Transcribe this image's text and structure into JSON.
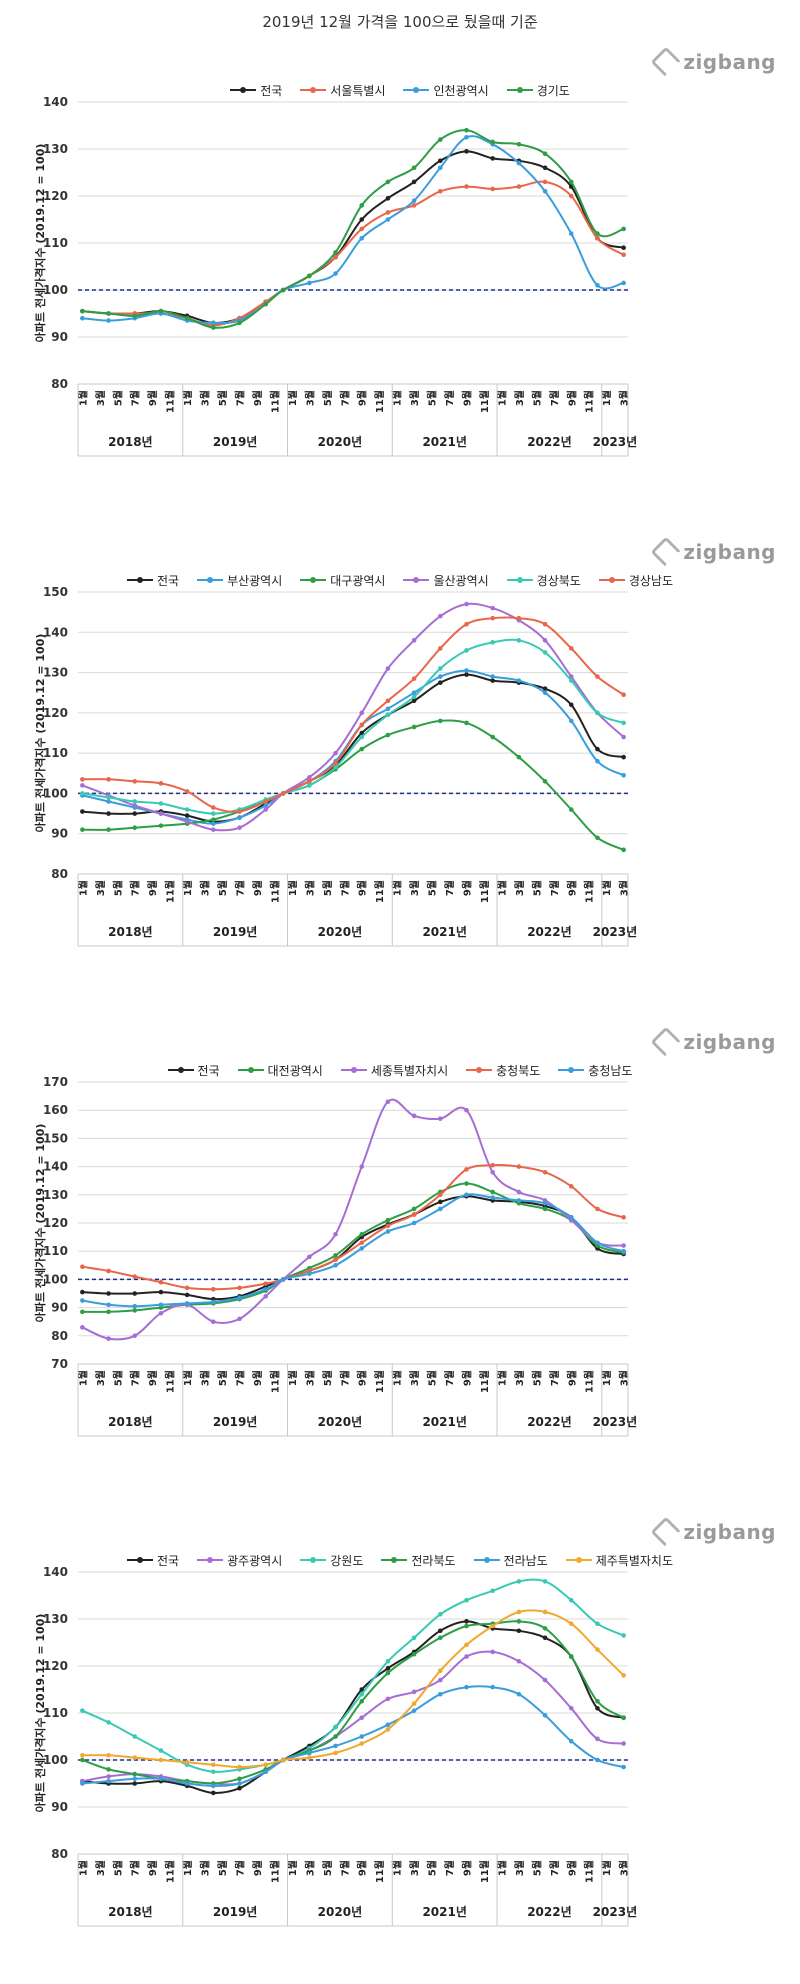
{
  "page_title": "2019년 12월 가격을 100으로 뒀을때 기준",
  "watermark": "zigbang",
  "ylabel": "아파트 전세가격지수 (2019.12 = 100)",
  "month_ticks": [
    "1월",
    "3월",
    "5월",
    "7월",
    "9월",
    "11월",
    "1월",
    "3월",
    "5월",
    "7월",
    "9월",
    "11월",
    "1월",
    "3월",
    "5월",
    "7월",
    "9월",
    "11월",
    "1월",
    "3월",
    "5월",
    "7월",
    "9월",
    "11월",
    "1월",
    "3월",
    "5월",
    "7월",
    "9월",
    "11월",
    "1월",
    "3월"
  ],
  "year_labels": [
    "2018년",
    "2019년",
    "2020년",
    "2021년",
    "2022년",
    "2023년"
  ],
  "chart_data": [
    {
      "type": "line",
      "x": [
        "2018.01",
        "2018.04",
        "2018.07",
        "2018.10",
        "2019.01",
        "2019.04",
        "2019.07",
        "2019.10",
        "2019.12",
        "2020.03",
        "2020.06",
        "2020.09",
        "2020.12",
        "2021.03",
        "2021.06",
        "2021.09",
        "2021.12",
        "2022.03",
        "2022.06",
        "2022.09",
        "2022.12",
        "2023.03"
      ],
      "ylim": [
        80,
        140
      ],
      "yticks": [
        80,
        90,
        100,
        110,
        120,
        130,
        140
      ],
      "reference_line": 100,
      "series": [
        {
          "name": "전국",
          "color": "#222222",
          "values": [
            95.5,
            95,
            95,
            95.5,
            94.5,
            93,
            94,
            97.5,
            100,
            103,
            107,
            115,
            119.5,
            123,
            127.5,
            129.5,
            128,
            127.5,
            126,
            122,
            111,
            109
          ]
        },
        {
          "name": "서울특별시",
          "color": "#e8674a",
          "values": [
            95.5,
            95,
            95,
            95,
            94,
            92.5,
            94,
            97.5,
            100,
            103,
            107,
            113,
            116.5,
            118,
            121,
            122,
            121.5,
            122,
            123,
            120,
            111,
            107.5
          ]
        },
        {
          "name": "인천광역시",
          "color": "#3a9ddc",
          "values": [
            94,
            93.5,
            94,
            95,
            93.5,
            93,
            93.5,
            97,
            100,
            101.5,
            103.5,
            111,
            115,
            119,
            126,
            132.5,
            131,
            127,
            121,
            112,
            101,
            101.5
          ]
        },
        {
          "name": "경기도",
          "color": "#2e9e46",
          "values": [
            95.5,
            95,
            94.5,
            95.5,
            94,
            92,
            93,
            97,
            100,
            103,
            108,
            118,
            123,
            126,
            132,
            134,
            131.5,
            131,
            129,
            123,
            112,
            113
          ]
        }
      ]
    },
    {
      "type": "line",
      "x": [
        "2018.01",
        "2018.04",
        "2018.07",
        "2018.10",
        "2019.01",
        "2019.04",
        "2019.07",
        "2019.10",
        "2019.12",
        "2020.03",
        "2020.06",
        "2020.09",
        "2020.12",
        "2021.03",
        "2021.06",
        "2021.09",
        "2021.12",
        "2022.03",
        "2022.06",
        "2022.09",
        "2022.12",
        "2023.03"
      ],
      "ylim": [
        80,
        150
      ],
      "yticks": [
        80,
        90,
        100,
        110,
        120,
        130,
        140,
        150
      ],
      "reference_line": 100,
      "series": [
        {
          "name": "전국",
          "color": "#222222",
          "values": [
            95.5,
            95,
            95,
            95.5,
            94.5,
            93,
            94,
            97.5,
            100,
            103,
            107,
            115,
            119.5,
            123,
            127.5,
            129.5,
            128,
            127.5,
            126,
            122,
            111,
            109
          ]
        },
        {
          "name": "부산광역시",
          "color": "#3a9ddc",
          "values": [
            99.5,
            98,
            96.5,
            95,
            93.5,
            92.5,
            94,
            97,
            100,
            103,
            108,
            117,
            121,
            125,
            129,
            130.5,
            129,
            128,
            125,
            118,
            108,
            104.5
          ]
        },
        {
          "name": "대구광역시",
          "color": "#2e9e46",
          "values": [
            91,
            91,
            91.5,
            92,
            92.5,
            93.5,
            95.5,
            98,
            100,
            102,
            106,
            111,
            114.5,
            116.5,
            118,
            117.5,
            114,
            109,
            103,
            96,
            89,
            86
          ]
        },
        {
          "name": "울산광역시",
          "color": "#a66dd4",
          "values": [
            102,
            99.5,
            97,
            95,
            93,
            91,
            91.5,
            96,
            100,
            104,
            110,
            120,
            131,
            138,
            144,
            147,
            146,
            143,
            138,
            129,
            120,
            114
          ]
        },
        {
          "name": "경상북도",
          "color": "#39c9b4",
          "values": [
            100,
            99,
            98,
            97.5,
            96,
            95,
            96,
            98.5,
            100,
            102,
            106.5,
            114,
            119.5,
            124,
            131,
            135.5,
            137.5,
            138,
            135,
            128,
            120,
            117.5
          ]
        },
        {
          "name": "경상남도",
          "color": "#e8674a",
          "values": [
            103.5,
            103.5,
            103,
            102.5,
            100.5,
            96.5,
            95.5,
            98,
            100,
            103,
            107.5,
            117,
            123,
            128.5,
            136,
            142,
            143.5,
            143.5,
            142,
            136,
            129,
            124.5
          ]
        }
      ]
    },
    {
      "type": "line",
      "x": [
        "2018.01",
        "2018.04",
        "2018.07",
        "2018.10",
        "2019.01",
        "2019.04",
        "2019.07",
        "2019.10",
        "2019.12",
        "2020.03",
        "2020.06",
        "2020.09",
        "2020.12",
        "2021.03",
        "2021.06",
        "2021.09",
        "2021.12",
        "2022.03",
        "2022.06",
        "2022.09",
        "2022.12",
        "2023.03"
      ],
      "ylim": [
        70,
        170
      ],
      "yticks": [
        70,
        80,
        90,
        100,
        110,
        120,
        130,
        140,
        150,
        160,
        170
      ],
      "reference_line": 100,
      "series": [
        {
          "name": "전국",
          "color": "#222222",
          "values": [
            95.5,
            95,
            95,
            95.5,
            94.5,
            93,
            94,
            97.5,
            100,
            103,
            107,
            115,
            119.5,
            123,
            127.5,
            129.5,
            128,
            127.5,
            126,
            122,
            111,
            109
          ]
        },
        {
          "name": "대전광역시",
          "color": "#2e9e46",
          "values": [
            88.5,
            88.5,
            89,
            90,
            91,
            91.5,
            93,
            96,
            100,
            104,
            108.5,
            116,
            121,
            125,
            131,
            134,
            131,
            127,
            125,
            121,
            112,
            109.5
          ]
        },
        {
          "name": "세종특별자치시",
          "color": "#a66dd4",
          "values": [
            83,
            79,
            80,
            88,
            91,
            85,
            86,
            94,
            100,
            108,
            116,
            140,
            163,
            158,
            157,
            160,
            138,
            131,
            128,
            121,
            113,
            112
          ]
        },
        {
          "name": "충청북도",
          "color": "#e8674a",
          "values": [
            104.5,
            103,
            101,
            99,
            97,
            96.5,
            97,
            98.5,
            100,
            103,
            107,
            113,
            119,
            123,
            130,
            139,
            140.5,
            140,
            138,
            133,
            125,
            122
          ]
        },
        {
          "name": "충청남도",
          "color": "#3a9ddc",
          "values": [
            92.5,
            91,
            90.5,
            91,
            91.5,
            92,
            93.5,
            96.5,
            100,
            102,
            105,
            111,
            117,
            120,
            125,
            130,
            129,
            128,
            127,
            122,
            113,
            110
          ]
        }
      ]
    },
    {
      "type": "line",
      "x": [
        "2018.01",
        "2018.04",
        "2018.07",
        "2018.10",
        "2019.01",
        "2019.04",
        "2019.07",
        "2019.10",
        "2019.12",
        "2020.03",
        "2020.06",
        "2020.09",
        "2020.12",
        "2021.03",
        "2021.06",
        "2021.09",
        "2021.12",
        "2022.03",
        "2022.06",
        "2022.09",
        "2022.12",
        "2023.03"
      ],
      "ylim": [
        80,
        140
      ],
      "yticks": [
        80,
        90,
        100,
        110,
        120,
        130,
        140
      ],
      "reference_line": 100,
      "series": [
        {
          "name": "전국",
          "color": "#222222",
          "values": [
            95.5,
            95,
            95,
            95.5,
            94.5,
            93,
            94,
            97.5,
            100,
            103,
            107,
            115,
            119.5,
            123,
            127.5,
            129.5,
            128,
            127.5,
            126,
            122,
            111,
            109
          ]
        },
        {
          "name": "광주광역시",
          "color": "#a66dd4",
          "values": [
            95.5,
            96.5,
            97,
            96.5,
            95.5,
            95,
            95,
            97.5,
            100,
            102,
            105,
            109,
            113,
            114.5,
            117,
            122,
            123,
            121,
            117,
            111,
            104.5,
            103.5
          ]
        },
        {
          "name": "강원도",
          "color": "#39c9b4",
          "values": [
            110.5,
            108,
            105,
            102,
            99,
            97.5,
            98,
            99,
            100,
            102.5,
            107,
            114,
            121,
            126,
            131,
            134,
            136,
            138,
            138,
            134,
            129,
            126.5
          ]
        },
        {
          "name": "전라북도",
          "color": "#2e9e46",
          "values": [
            100,
            98,
            97,
            96,
            95.5,
            95,
            96,
            98,
            100,
            102,
            105,
            112.5,
            118.5,
            122.5,
            126,
            128.5,
            129,
            129.5,
            128,
            122,
            112.5,
            109
          ]
        },
        {
          "name": "전라남도",
          "color": "#3a9ddc",
          "values": [
            95,
            95.5,
            96,
            96,
            95,
            94.5,
            95,
            97.5,
            100,
            101.5,
            103,
            105,
            107.5,
            110.5,
            114,
            115.5,
            115.5,
            114,
            109.5,
            104,
            100,
            98.5
          ]
        },
        {
          "name": "제주특별자치도",
          "color": "#f0a830",
          "values": [
            101,
            101,
            100.5,
            100,
            99.5,
            99,
            98.5,
            99,
            100,
            100.5,
            101.5,
            103.5,
            106.5,
            112,
            119,
            124.5,
            128.5,
            131.5,
            131.5,
            129,
            123.5,
            118
          ]
        }
      ]
    }
  ]
}
